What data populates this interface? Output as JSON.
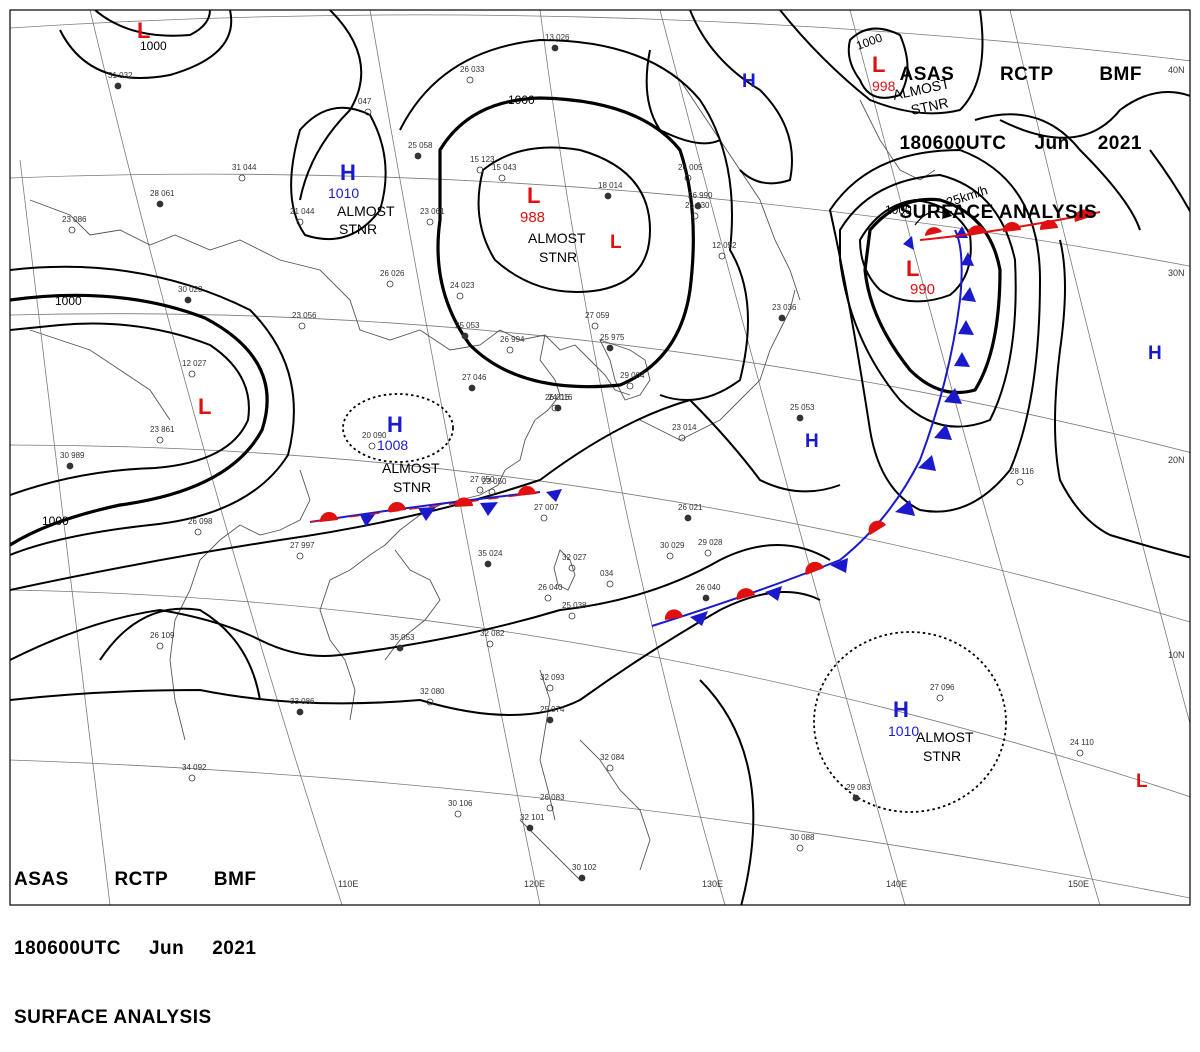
{
  "header": {
    "line1": [
      "ASAS",
      "RCTP",
      "BMF"
    ],
    "line2": [
      "180600UTC",
      "Jun",
      "2021"
    ],
    "line3": "SURFACE ANALYSIS"
  },
  "colors": {
    "high": "#1a1acc",
    "low": "#e01010",
    "warm_front": "#e01010",
    "cold_front": "#1a1acc",
    "isobar": "#000000"
  },
  "lat_labels": [
    "40N",
    "30N",
    "20N",
    "10N"
  ],
  "lon_labels": [
    "110E",
    "120E",
    "130E",
    "140E",
    "150E"
  ],
  "systems": [
    {
      "id": "L1",
      "type": "L",
      "pressure": "988",
      "status": "ALMOST STNR"
    },
    {
      "id": "L2",
      "type": "L",
      "pressure": "990",
      "motion": "25km/h"
    },
    {
      "id": "L3",
      "type": "L",
      "pressure": "998",
      "status": "ALMOST STNR"
    },
    {
      "id": "L4",
      "type": "L"
    },
    {
      "id": "L5",
      "type": "L"
    },
    {
      "id": "L6",
      "type": "L"
    },
    {
      "id": "L7",
      "type": "L"
    },
    {
      "id": "H1",
      "type": "H",
      "pressure": "1010",
      "status": "ALMOST STNR"
    },
    {
      "id": "H2",
      "type": "H",
      "pressure": "1008",
      "status": "ALMOST STNR"
    },
    {
      "id": "H3",
      "type": "H",
      "pressure": "1010",
      "status": "ALMOST STNR"
    },
    {
      "id": "H4",
      "type": "H"
    },
    {
      "id": "H5",
      "type": "H"
    },
    {
      "id": "H6",
      "type": "H"
    }
  ],
  "isobar_labels": [
    "1000",
    "1000",
    "1000",
    "1000",
    "1000",
    "1000"
  ],
  "almost_stnr": [
    "ALMOST",
    "STNR"
  ],
  "stations": [
    "31 032",
    "047",
    "26 033",
    "13 026",
    "15 123",
    "31 044",
    "28 061",
    "23 086",
    "21 044",
    "25 058",
    "23 061",
    "15 043",
    "18 014",
    "26 005",
    "26 030",
    "26 990",
    "26 026",
    "24 023",
    "25 053",
    "26 994",
    "27 059",
    "25 975",
    "29 004",
    "12 052",
    "30 023",
    "23 056",
    "12 027",
    "27 046",
    "20 090",
    "23 861",
    "30 989",
    "26 016",
    "27 050",
    "23 036",
    "27 007",
    "23 014",
    "26 021",
    "30 029",
    "29 028",
    "35 024",
    "32 027",
    "034",
    "26 040",
    "27 997",
    "26 098",
    "35 053",
    "26 109",
    "32 082",
    "33 086",
    "32 080",
    "32 093",
    "25 074",
    "34 092",
    "30 106",
    "32 101",
    "32 084",
    "26 083",
    "30 102",
    "26 040",
    "25 038",
    "24 016",
    "24 110",
    "27 096",
    "29 083",
    "30 088",
    "28 116",
    "25 053",
    "23 050"
  ]
}
